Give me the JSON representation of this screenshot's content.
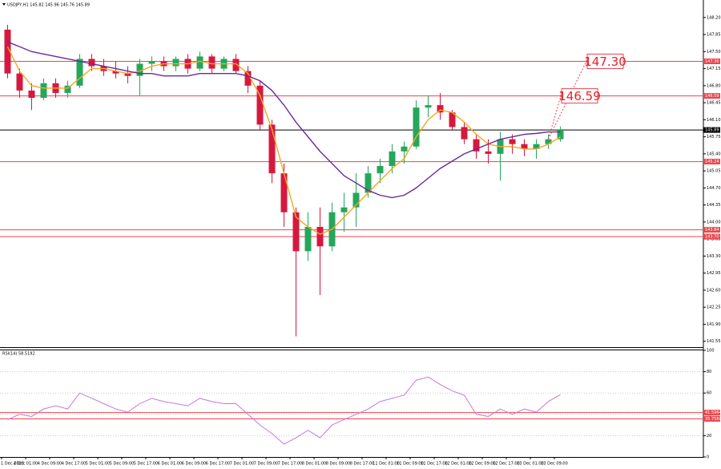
{
  "chart_data": [
    {
      "type": "candlestick",
      "title": "USDJPY,H1  145.82 145.96 145.76 145.89",
      "categories": [
        "1 Dec 2023",
        null,
        "4 Dec 01:00",
        null,
        "4 Dec 09:00",
        null,
        "4 Dec 17:00",
        null,
        "5 Dec 01:00",
        null,
        "5 Dec 09:00",
        null,
        "5 Dec 17:00",
        null,
        "6 Dec 01:00",
        null,
        "6 Dec 09:00",
        null,
        "6 Dec 17:00",
        null,
        "7 Dec 01:00",
        null,
        "7 Dec 09:00",
        null,
        "7 Dec 17:00",
        null,
        "8 Dec 01:00",
        null,
        "8 Dec 09:00",
        null,
        "8 Dec 17:00",
        null,
        "11 Dec 01:00",
        null,
        "11 Dec 09:00",
        null,
        "11 Dec 17:00",
        null,
        "12 Dec 01:00",
        null,
        "12 Dec 09:00",
        null,
        "12 Dec 17:00",
        null,
        "13 Dec 01:00",
        null,
        "13 Dec 09:00"
      ],
      "open": [
        147.95,
        147.05,
        146.7,
        146.55,
        146.85,
        146.65,
        146.8,
        147.35,
        147.2,
        147.1,
        147.05,
        147.0,
        147.25,
        147.3,
        147.2,
        147.35,
        147.15,
        147.4,
        147.15,
        147.35,
        147.1,
        146.8,
        146.0,
        145.0,
        144.2,
        143.4,
        143.9,
        143.5,
        144.2,
        144.3,
        144.6,
        145.0,
        145.15,
        145.45,
        145.55,
        146.35,
        146.4,
        146.25,
        145.95,
        145.7,
        145.45,
        145.4,
        145.7,
        145.6,
        145.5,
        145.6,
        145.7
      ],
      "high": [
        148.05,
        147.15,
        146.85,
        146.95,
        146.95,
        146.9,
        147.45,
        147.45,
        147.35,
        147.3,
        147.2,
        147.35,
        147.4,
        147.4,
        147.4,
        147.45,
        147.5,
        147.45,
        147.4,
        147.45,
        147.2,
        146.9,
        146.1,
        145.2,
        144.3,
        144.2,
        144.3,
        144.4,
        144.6,
        145.0,
        145.15,
        145.3,
        145.6,
        145.65,
        146.5,
        146.6,
        146.65,
        146.3,
        146.05,
        145.8,
        145.7,
        145.85,
        145.8,
        145.7,
        145.7,
        145.8,
        145.96
      ],
      "low": [
        146.95,
        146.55,
        146.3,
        146.5,
        146.55,
        146.55,
        146.75,
        147.1,
        147.0,
        146.95,
        146.85,
        146.6,
        147.1,
        147.1,
        147.1,
        147.05,
        147.1,
        147.05,
        147.1,
        147.05,
        146.65,
        145.9,
        144.8,
        143.9,
        141.65,
        143.2,
        142.5,
        143.4,
        143.8,
        143.9,
        144.5,
        144.8,
        145.0,
        145.2,
        145.5,
        146.15,
        146.1,
        145.9,
        145.6,
        145.3,
        145.2,
        144.85,
        145.4,
        145.35,
        145.3,
        145.5,
        145.65
      ],
      "close": [
        147.05,
        146.7,
        146.55,
        146.85,
        146.65,
        146.8,
        147.35,
        147.2,
        147.1,
        147.05,
        147.0,
        147.25,
        147.3,
        147.2,
        147.35,
        147.15,
        147.4,
        147.15,
        147.35,
        147.1,
        146.8,
        146.0,
        145.0,
        144.2,
        143.4,
        143.9,
        143.5,
        144.2,
        144.3,
        144.6,
        145.0,
        145.15,
        145.45,
        145.55,
        146.35,
        146.4,
        146.25,
        145.95,
        145.7,
        145.45,
        145.4,
        145.7,
        145.6,
        145.5,
        145.6,
        145.7,
        145.89
      ],
      "up_color": "#26a65b",
      "down_color": "#d6183f",
      "lines": [
        {
          "color": "#f5a623",
          "values": [
            147.6,
            147.1,
            146.8,
            146.75,
            146.75,
            146.75,
            146.95,
            147.15,
            147.15,
            147.1,
            147.05,
            147.1,
            147.2,
            147.25,
            147.25,
            147.25,
            147.3,
            147.25,
            147.25,
            147.25,
            147.05,
            146.6,
            145.9,
            145.0,
            144.1,
            143.9,
            143.75,
            143.85,
            144.1,
            144.35,
            144.6,
            144.85,
            145.1,
            145.3,
            145.75,
            146.1,
            146.3,
            146.25,
            146.05,
            145.8,
            145.6,
            145.55,
            145.55,
            145.5,
            145.5,
            145.6,
            145.75
          ]
        },
        {
          "color": "#6a2a9a",
          "values": [
            147.7,
            147.6,
            147.5,
            147.45,
            147.4,
            147.35,
            147.3,
            147.25,
            147.2,
            147.15,
            147.1,
            147.05,
            147.05,
            147.0,
            147.0,
            147.0,
            147.05,
            147.05,
            147.05,
            147.05,
            147.0,
            146.9,
            146.7,
            146.4,
            146.05,
            145.75,
            145.45,
            145.2,
            144.95,
            144.8,
            144.65,
            144.55,
            144.5,
            144.55,
            144.7,
            144.9,
            145.1,
            145.25,
            145.4,
            145.5,
            145.6,
            145.7,
            145.75,
            145.8,
            145.82,
            145.85,
            145.85
          ]
        }
      ],
      "ylim": [
        141.43,
        148.51
      ],
      "yticks": [
        141.55,
        {
          "value": 141.9,
          "label": "141.90"
        },
        142.25,
        {
          "value": 142.6,
          "label": "142.60"
        },
        142.95,
        {
          "value": 143.3,
          "label": "143.30"
        },
        143.65,
        {
          "value": 144.0,
          "label": "144.00"
        },
        144.35,
        {
          "value": 144.7,
          "label": "144.70"
        },
        145.05,
        {
          "value": 145.4,
          "label": "145.40"
        },
        145.75,
        {
          "value": 146.1,
          "label": "146.10"
        },
        146.45,
        {
          "value": 146.8,
          "label": "146.80"
        },
        147.15,
        {
          "value": 147.5,
          "label": "147.50"
        },
        147.85,
        {
          "value": 148.2,
          "label": "148.20"
        }
      ],
      "levels": [
        {
          "value": 147.3,
          "label": "147.30",
          "color": "#e8474f"
        },
        {
          "value": 146.59,
          "label": "146.59",
          "color": "#e8474f"
        },
        {
          "value": 145.89,
          "label": "145.89",
          "color": "#000000"
        },
        {
          "value": 145.24,
          "label": "145.24",
          "color": "#e8474f"
        },
        {
          "value": 143.84,
          "label": "143.84",
          "color": "#e8474f"
        },
        {
          "value": 143.7,
          "label": "143.70",
          "color": "#e8474f"
        }
      ],
      "annotations": [
        {
          "value": 147.3,
          "label": "147.30"
        },
        {
          "value": 146.59,
          "label": "146.59"
        }
      ],
      "grid": false
    },
    {
      "type": "line",
      "title": "RSI(14) 58.5192",
      "color": "#c678d8",
      "values": [
        35,
        40,
        38,
        45,
        48,
        45,
        60,
        55,
        50,
        45,
        42,
        50,
        55,
        52,
        50,
        48,
        55,
        52,
        50,
        50,
        40,
        30,
        22,
        12,
        18,
        25,
        18,
        30,
        35,
        40,
        45,
        52,
        55,
        58,
        72,
        75,
        68,
        62,
        58,
        40,
        38,
        45,
        40,
        45,
        42,
        52,
        58.5192
      ],
      "ylim": [
        0,
        100
      ],
      "yticks": [
        0,
        20,
        40,
        60,
        80,
        100
      ],
      "levels": [
        {
          "value": 41.5964,
          "label": "41.5964",
          "color": "#e8474f"
        },
        {
          "value": 35.756,
          "label": "35.7560",
          "color": "#e8474f"
        }
      ],
      "grid": true
    }
  ]
}
